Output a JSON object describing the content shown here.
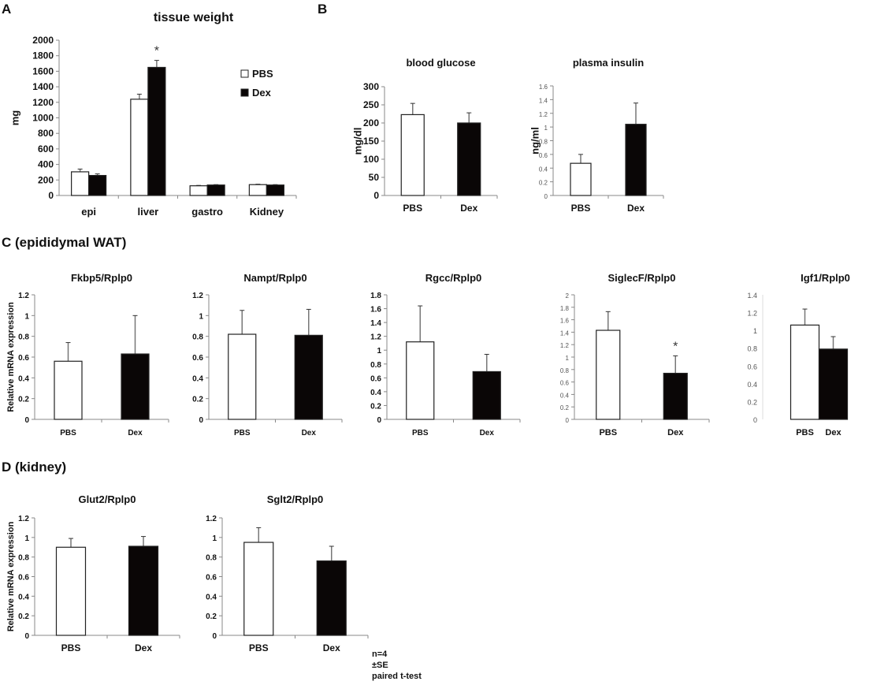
{
  "panels": {
    "A": "A",
    "B": "B",
    "C": "C (epididymal WAT)",
    "D": "D (kidney)"
  },
  "notes": [
    "n=4",
    "±SE",
    "paired t-test"
  ],
  "colors": {
    "pbs": "#ffffff",
    "dex": "#0a0606",
    "axis": "#888888",
    "text": "#111111"
  },
  "chart_data": [
    {
      "id": "tissue-weight",
      "type": "bar",
      "title": "tissue weight",
      "ylabel": "mg",
      "xlabel": "",
      "categories": [
        "epi",
        "liver",
        "gastro",
        "Kidney"
      ],
      "ylim": [
        0,
        2000
      ],
      "yticks": [
        "0",
        "200",
        "400",
        "600",
        "800",
        "1000",
        "1200",
        "1400",
        "1600",
        "1800",
        "2000"
      ],
      "legend": {
        "position": "top-right",
        "entries": [
          "PBS",
          "Dex"
        ]
      },
      "series": [
        {
          "name": "PBS",
          "values": [
            305,
            1240,
            125,
            140
          ],
          "errors": [
            35,
            65,
            5,
            5
          ]
        },
        {
          "name": "Dex",
          "values": [
            258,
            1650,
            135,
            135
          ],
          "errors": [
            20,
            90,
            5,
            5
          ]
        }
      ],
      "annotations": [
        {
          "category": "liver",
          "series": "Dex",
          "text": "*"
        }
      ]
    },
    {
      "id": "blood-glucose",
      "type": "bar",
      "title": "blood glucose",
      "ylabel": "mg/dl",
      "categories": [
        "PBS",
        "Dex"
      ],
      "ylim": [
        0,
        300
      ],
      "yticks": [
        "0",
        "50",
        "100",
        "150",
        "200",
        "250",
        "300"
      ],
      "values": [
        223,
        200
      ],
      "errors": [
        31,
        28
      ],
      "annotations": []
    },
    {
      "id": "plasma-insulin",
      "type": "bar",
      "title": "plasma insulin",
      "ylabel": "ng/ml",
      "categories": [
        "PBS",
        "Dex"
      ],
      "ylim": [
        0,
        1.6
      ],
      "yticks": [
        "0",
        "0.2",
        "0.4",
        "0.6",
        "0.8",
        "1",
        "1.2",
        "1.4",
        "1.6"
      ],
      "values": [
        0.47,
        1.04
      ],
      "errors": [
        0.13,
        0.31
      ],
      "annotations": []
    },
    {
      "id": "fkbp5",
      "type": "bar",
      "title": "Fkbp5/Rplp0",
      "ylabel": "Relative mRNA expression",
      "categories": [
        "PBS",
        "Dex"
      ],
      "ylim": [
        0,
        1.2
      ],
      "yticks": [
        "0",
        "0.2",
        "0.4",
        "0.6",
        "0.8",
        "1",
        "1.2"
      ],
      "values": [
        0.56,
        0.63
      ],
      "errors": [
        0.18,
        0.37
      ],
      "annotations": []
    },
    {
      "id": "nampt",
      "type": "bar",
      "title": "Nampt/Rplp0",
      "ylabel": "",
      "categories": [
        "PBS",
        "Dex"
      ],
      "ylim": [
        0,
        1.2
      ],
      "yticks": [
        "0",
        "0.2",
        "0.4",
        "0.6",
        "0.8",
        "1",
        "1.2"
      ],
      "values": [
        0.82,
        0.81
      ],
      "errors": [
        0.23,
        0.25
      ],
      "annotations": []
    },
    {
      "id": "rgcc",
      "type": "bar",
      "title": "Rgcc/Rplp0",
      "ylabel": "",
      "categories": [
        "PBS",
        "Dex"
      ],
      "ylim": [
        0,
        1.8
      ],
      "yticks": [
        "0",
        "0.2",
        "0.4",
        "0.6",
        "0.8",
        "1",
        "1.2",
        "1.4",
        "1.6",
        "1.8"
      ],
      "values": [
        1.12,
        0.69
      ],
      "errors": [
        0.52,
        0.25
      ],
      "annotations": []
    },
    {
      "id": "siglecf",
      "type": "bar",
      "title": "SiglecF/Rplp0",
      "ylabel": "",
      "categories": [
        "PBS",
        "Dex"
      ],
      "ylim": [
        0,
        2
      ],
      "yticks": [
        "0",
        "0.2",
        "0.4",
        "0.6",
        "0.8",
        "1",
        "1.2",
        "1.4",
        "1.6",
        "1.8",
        "2"
      ],
      "values": [
        1.43,
        0.74
      ],
      "errors": [
        0.3,
        0.28
      ],
      "annotations": [
        {
          "category": "Dex",
          "text": "*"
        }
      ]
    },
    {
      "id": "igf1",
      "type": "bar",
      "title": "Igf1/Rplp0",
      "ylabel": "",
      "categories": [
        "PBS",
        "Dex"
      ],
      "ylim": [
        0,
        1.4
      ],
      "yticks": [
        "0",
        "0.2",
        "0.4",
        "0.6",
        "0.8",
        "1",
        "1.2",
        "1.4"
      ],
      "values": [
        1.06,
        0.79
      ],
      "errors": [
        0.18,
        0.14
      ],
      "annotations": []
    },
    {
      "id": "glut2",
      "type": "bar",
      "title": "Glut2/Rplp0",
      "ylabel": "Relative mRNA expression",
      "categories": [
        "PBS",
        "Dex"
      ],
      "ylim": [
        0,
        1.2
      ],
      "yticks": [
        "0",
        "0.2",
        "0.4",
        "0.6",
        "0.8",
        "1",
        "1.2"
      ],
      "values": [
        0.9,
        0.91
      ],
      "errors": [
        0.09,
        0.1
      ],
      "annotations": []
    },
    {
      "id": "sglt2",
      "type": "bar",
      "title": "Sglt2/Rplp0",
      "ylabel": "",
      "categories": [
        "PBS",
        "Dex"
      ],
      "ylim": [
        0,
        1.2
      ],
      "yticks": [
        "0",
        "0.2",
        "0.4",
        "0.6",
        "0.8",
        "1",
        "1.2"
      ],
      "values": [
        0.95,
        0.76
      ],
      "errors": [
        0.15,
        0.15
      ],
      "annotations": []
    }
  ]
}
